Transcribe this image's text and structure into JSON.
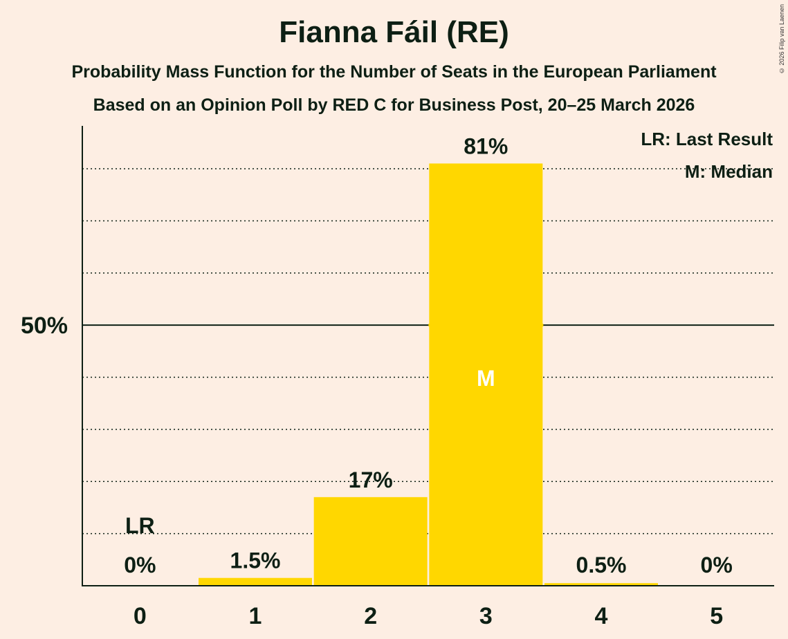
{
  "title": "Fianna Fáil (RE)",
  "subtitle1": "Probability Mass Function for the Number of Seats in the European Parliament",
  "subtitle2": "Based on an Opinion Poll by RED C for Business Post, 20–25 March 2026",
  "copyright": "© 2026 Filip van Laenen",
  "colors": {
    "background": "#FDEEE3",
    "bar": "#FFD700",
    "text": "#0d1f14",
    "median_label": "#FFFFFF"
  },
  "chart_data": {
    "type": "bar",
    "categories": [
      "0",
      "1",
      "2",
      "3",
      "4",
      "5"
    ],
    "values": [
      0,
      1.5,
      17,
      81,
      0.5,
      0
    ],
    "value_labels": [
      "0%",
      "1.5%",
      "17%",
      "81%",
      "0.5%",
      "0%"
    ],
    "ylim": [
      0,
      88
    ],
    "y_tick_label": "50%",
    "y_tick_value": 50,
    "gridlines": [
      10,
      20,
      30,
      40,
      50,
      60,
      70,
      80
    ],
    "last_result_category": "0",
    "last_result_label": "LR",
    "median_category": "3",
    "median_label": "M",
    "legend": [
      "LR: Last Result",
      "M: Median"
    ],
    "legend_position": "top-right"
  }
}
